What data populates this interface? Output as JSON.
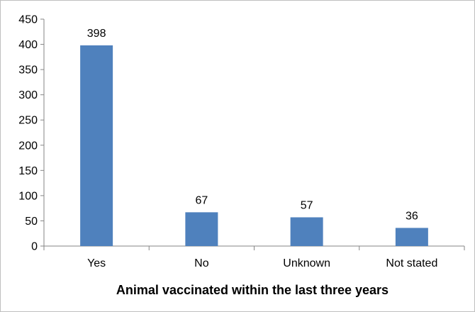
{
  "chart_data": {
    "type": "bar",
    "categories": [
      "Yes",
      "No",
      "Unknown",
      "Not stated"
    ],
    "values": [
      398,
      67,
      57,
      36
    ],
    "data_labels": [
      "398",
      "67",
      "57",
      "36"
    ],
    "title": "",
    "xlabel": "Animal vaccinated within the last three years",
    "ylabel": "",
    "ylim": [
      0,
      450
    ],
    "yticks": [
      0,
      50,
      100,
      150,
      200,
      250,
      300,
      350,
      400,
      450
    ],
    "ytick_labels": [
      "0",
      "50",
      "100",
      "150",
      "200",
      "250",
      "300",
      "350",
      "400",
      "450"
    ],
    "grid": false,
    "legend": "none",
    "bar_color": "#4f81bd"
  }
}
